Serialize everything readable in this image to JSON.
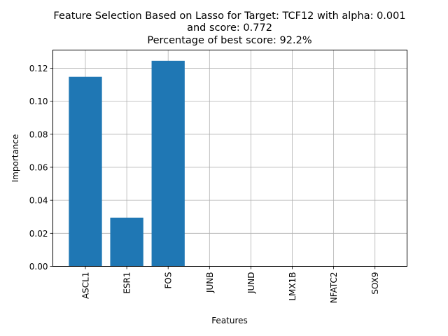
{
  "chart_data": {
    "type": "bar",
    "title_lines": [
      "Feature Selection Based on Lasso for Target: TCF12 with alpha: 0.001",
      "and score: 0.772",
      "Percentage of best score: 92.2%"
    ],
    "xlabel": "Features",
    "ylabel": "Importance",
    "categories": [
      "ASCL1",
      "ESR1",
      "FOS",
      "JUNB",
      "JUND",
      "LMX1B",
      "NFATC2",
      "SOX9"
    ],
    "values": [
      0.1148,
      0.0295,
      0.1245,
      0,
      0,
      0,
      0,
      0
    ],
    "ylim": [
      0,
      0.131
    ],
    "yticks": [
      0.0,
      0.02,
      0.04,
      0.06,
      0.08,
      0.1,
      0.12
    ],
    "ytick_labels": [
      "0.00",
      "0.02",
      "0.04",
      "0.06",
      "0.08",
      "0.10",
      "0.12"
    ],
    "grid": true,
    "bar_color": "#1f77b4"
  }
}
